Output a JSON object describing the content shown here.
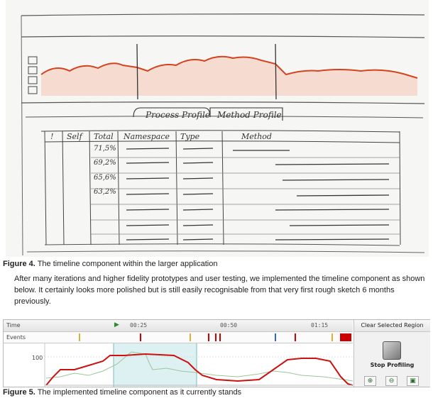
{
  "sketch": {
    "tabs": [
      "Process Profile",
      "Method Profile"
    ],
    "columns": [
      "!",
      "Self",
      "Total",
      "Namespace",
      "Type",
      "Method"
    ],
    "total_values": [
      "71,5%",
      "69,2%",
      "65,6%",
      "63,2%"
    ]
  },
  "figure4_caption": {
    "label": "Figure 4.",
    "text": " The timeline component within the larger application"
  },
  "paragraph": "After many iterations and higher fidelity prototypes and user testing, we implemented the timeline component as shown below. It certainly looks more polished but is still easily recognisable from that very first rough sketch 6 months previously.",
  "timeline": {
    "time_label": "Time",
    "events_label": "Events",
    "ticks": [
      "00:25",
      "00:50",
      "01:15"
    ],
    "y_label": "100",
    "clear_button": "Clear Selected Region",
    "stop_button": "Stop Profiling",
    "tool_icons": [
      "zoom-in-icon",
      "zoom-out-icon",
      "fit-icon"
    ],
    "colors": {
      "cpu_line": "#cc1111",
      "secondary_line": "#9bc69b",
      "selection": "#cfe8ec",
      "event_marker": "#cc0000"
    }
  },
  "figure5_caption": {
    "label": "Figure 5.",
    "text": " The implemented timeline component as it currently stands"
  }
}
